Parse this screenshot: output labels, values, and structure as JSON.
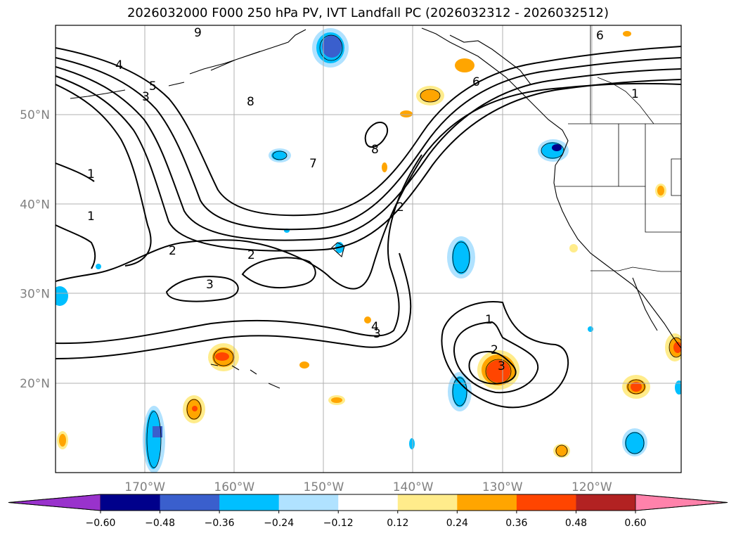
{
  "title": "2026032000 F000 250 hPa PV, IVT Landfall PC (2026032312 - 2026032512)",
  "map": {
    "lat_labels": [
      {
        "label": "50°N",
        "lat": 50
      },
      {
        "label": "40°N",
        "lat": 40
      },
      {
        "label": "30°N",
        "lat": 30
      },
      {
        "label": "20°N",
        "lat": 20
      }
    ],
    "lon_labels": [
      {
        "label": "170°W",
        "lon": -170
      },
      {
        "label": "160°W",
        "lon": -160
      },
      {
        "label": "150°W",
        "lon": -150
      },
      {
        "label": "140°W",
        "lon": -140
      },
      {
        "label": "130°W",
        "lon": -130
      },
      {
        "label": "120°W",
        "lon": -120
      }
    ],
    "extent": {
      "lon_min": -180,
      "lon_max": -110,
      "lat_min": 10,
      "lat_max": 60
    },
    "contour_labels": [
      "9",
      "4",
      "5",
      "3",
      "8",
      "7",
      "8",
      "1",
      "1",
      "2",
      "2",
      "3",
      "2",
      "4",
      "3",
      "1",
      "2",
      "3",
      "6",
      "6",
      "1"
    ]
  },
  "colorbar": {
    "ticks": [
      "−0.60",
      "−0.48",
      "−0.36",
      "−0.24",
      "−0.12",
      "0.12",
      "0.24",
      "0.36",
      "0.48",
      "0.60"
    ],
    "colors": [
      "#9932cc",
      "#00008b",
      "#3a5fcd",
      "#00bfff",
      "#b0e2ff",
      "#ffffff",
      "#ffec8b",
      "#ffa500",
      "#ff4500",
      "#b22222",
      "#ff82ab"
    ]
  }
}
